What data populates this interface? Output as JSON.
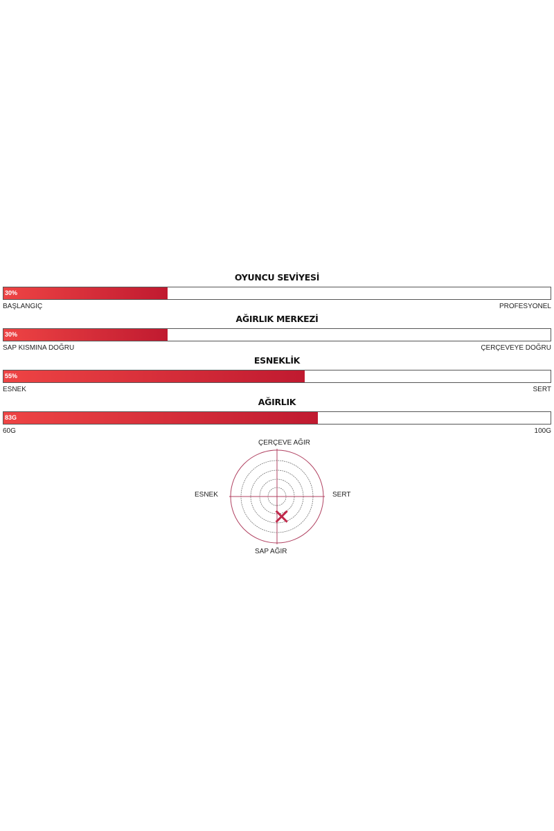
{
  "bars": [
    {
      "title": "OYUNCU SEVİYESİ",
      "value_label": "30%",
      "fill_percent": 30,
      "left_label": "BAŞLANGIÇ",
      "right_label": "PROFESYONEL"
    },
    {
      "title": "AĞIRLIK MERKEZİ",
      "value_label": "30%",
      "fill_percent": 30,
      "left_label": "SAP KISMINA DOĞRU",
      "right_label": "ÇERÇEVEYE DOĞRU"
    },
    {
      "title": "ESNEKLİK",
      "value_label": "55%",
      "fill_percent": 55,
      "left_label": "ESNEK",
      "right_label": "SERT"
    },
    {
      "title": "AĞIRLIK",
      "value_label": "83G",
      "fill_percent": 57.5,
      "left_label": "60G",
      "right_label": "100G"
    }
  ],
  "target": {
    "top": "ÇERÇEVE AĞIR",
    "bottom": "SAP AĞIR",
    "left": "ESNEK",
    "right": "SERT",
    "marker_x": 0.1,
    "marker_y": -0.43,
    "color": "#c0284a"
  },
  "colors": {
    "bar_start": "#ee4444",
    "bar_end": "#c01a30"
  }
}
